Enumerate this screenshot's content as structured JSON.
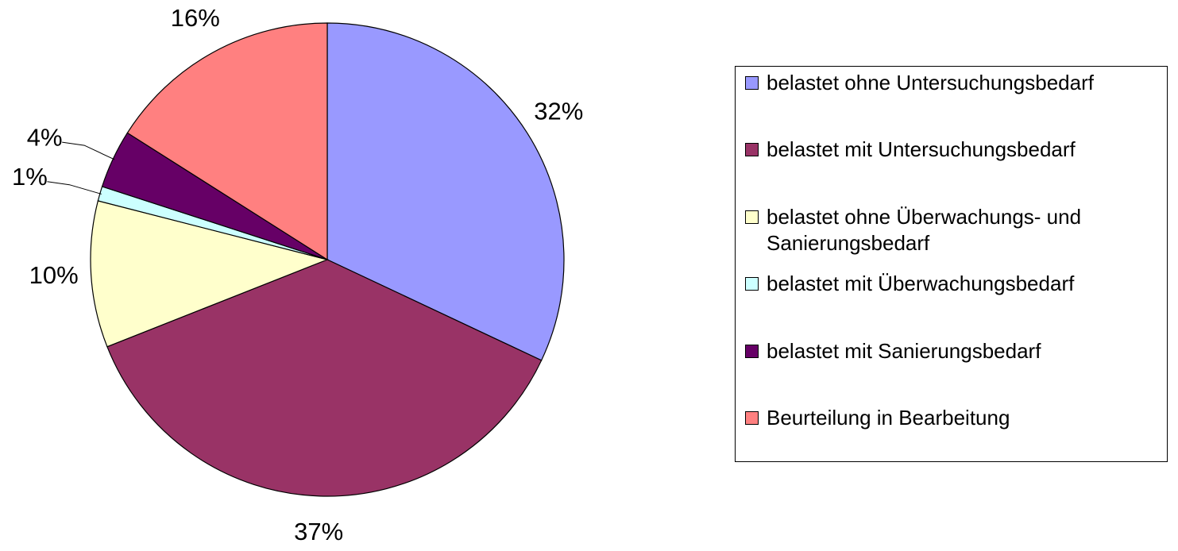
{
  "chart_data": {
    "type": "pie",
    "categories": [
      "belastet ohne Untersuchungsbedarf",
      "belastet mit Untersuchungsbedarf",
      "belastet ohne Überwachungs- und Sanierungsbedarf",
      "belastet mit Überwachungsbedarf",
      "belastet mit Sanierungsbedarf",
      "Beurteilung in Bearbeitung"
    ],
    "values": [
      32,
      37,
      10,
      1,
      4,
      16
    ],
    "value_labels": [
      "32%",
      "37%",
      "10%",
      "1%",
      "4%",
      "16%"
    ],
    "colors": [
      "#9999ff",
      "#993366",
      "#ffffcc",
      "#ccffff",
      "#660066",
      "#ff8080"
    ],
    "legend": "right"
  }
}
